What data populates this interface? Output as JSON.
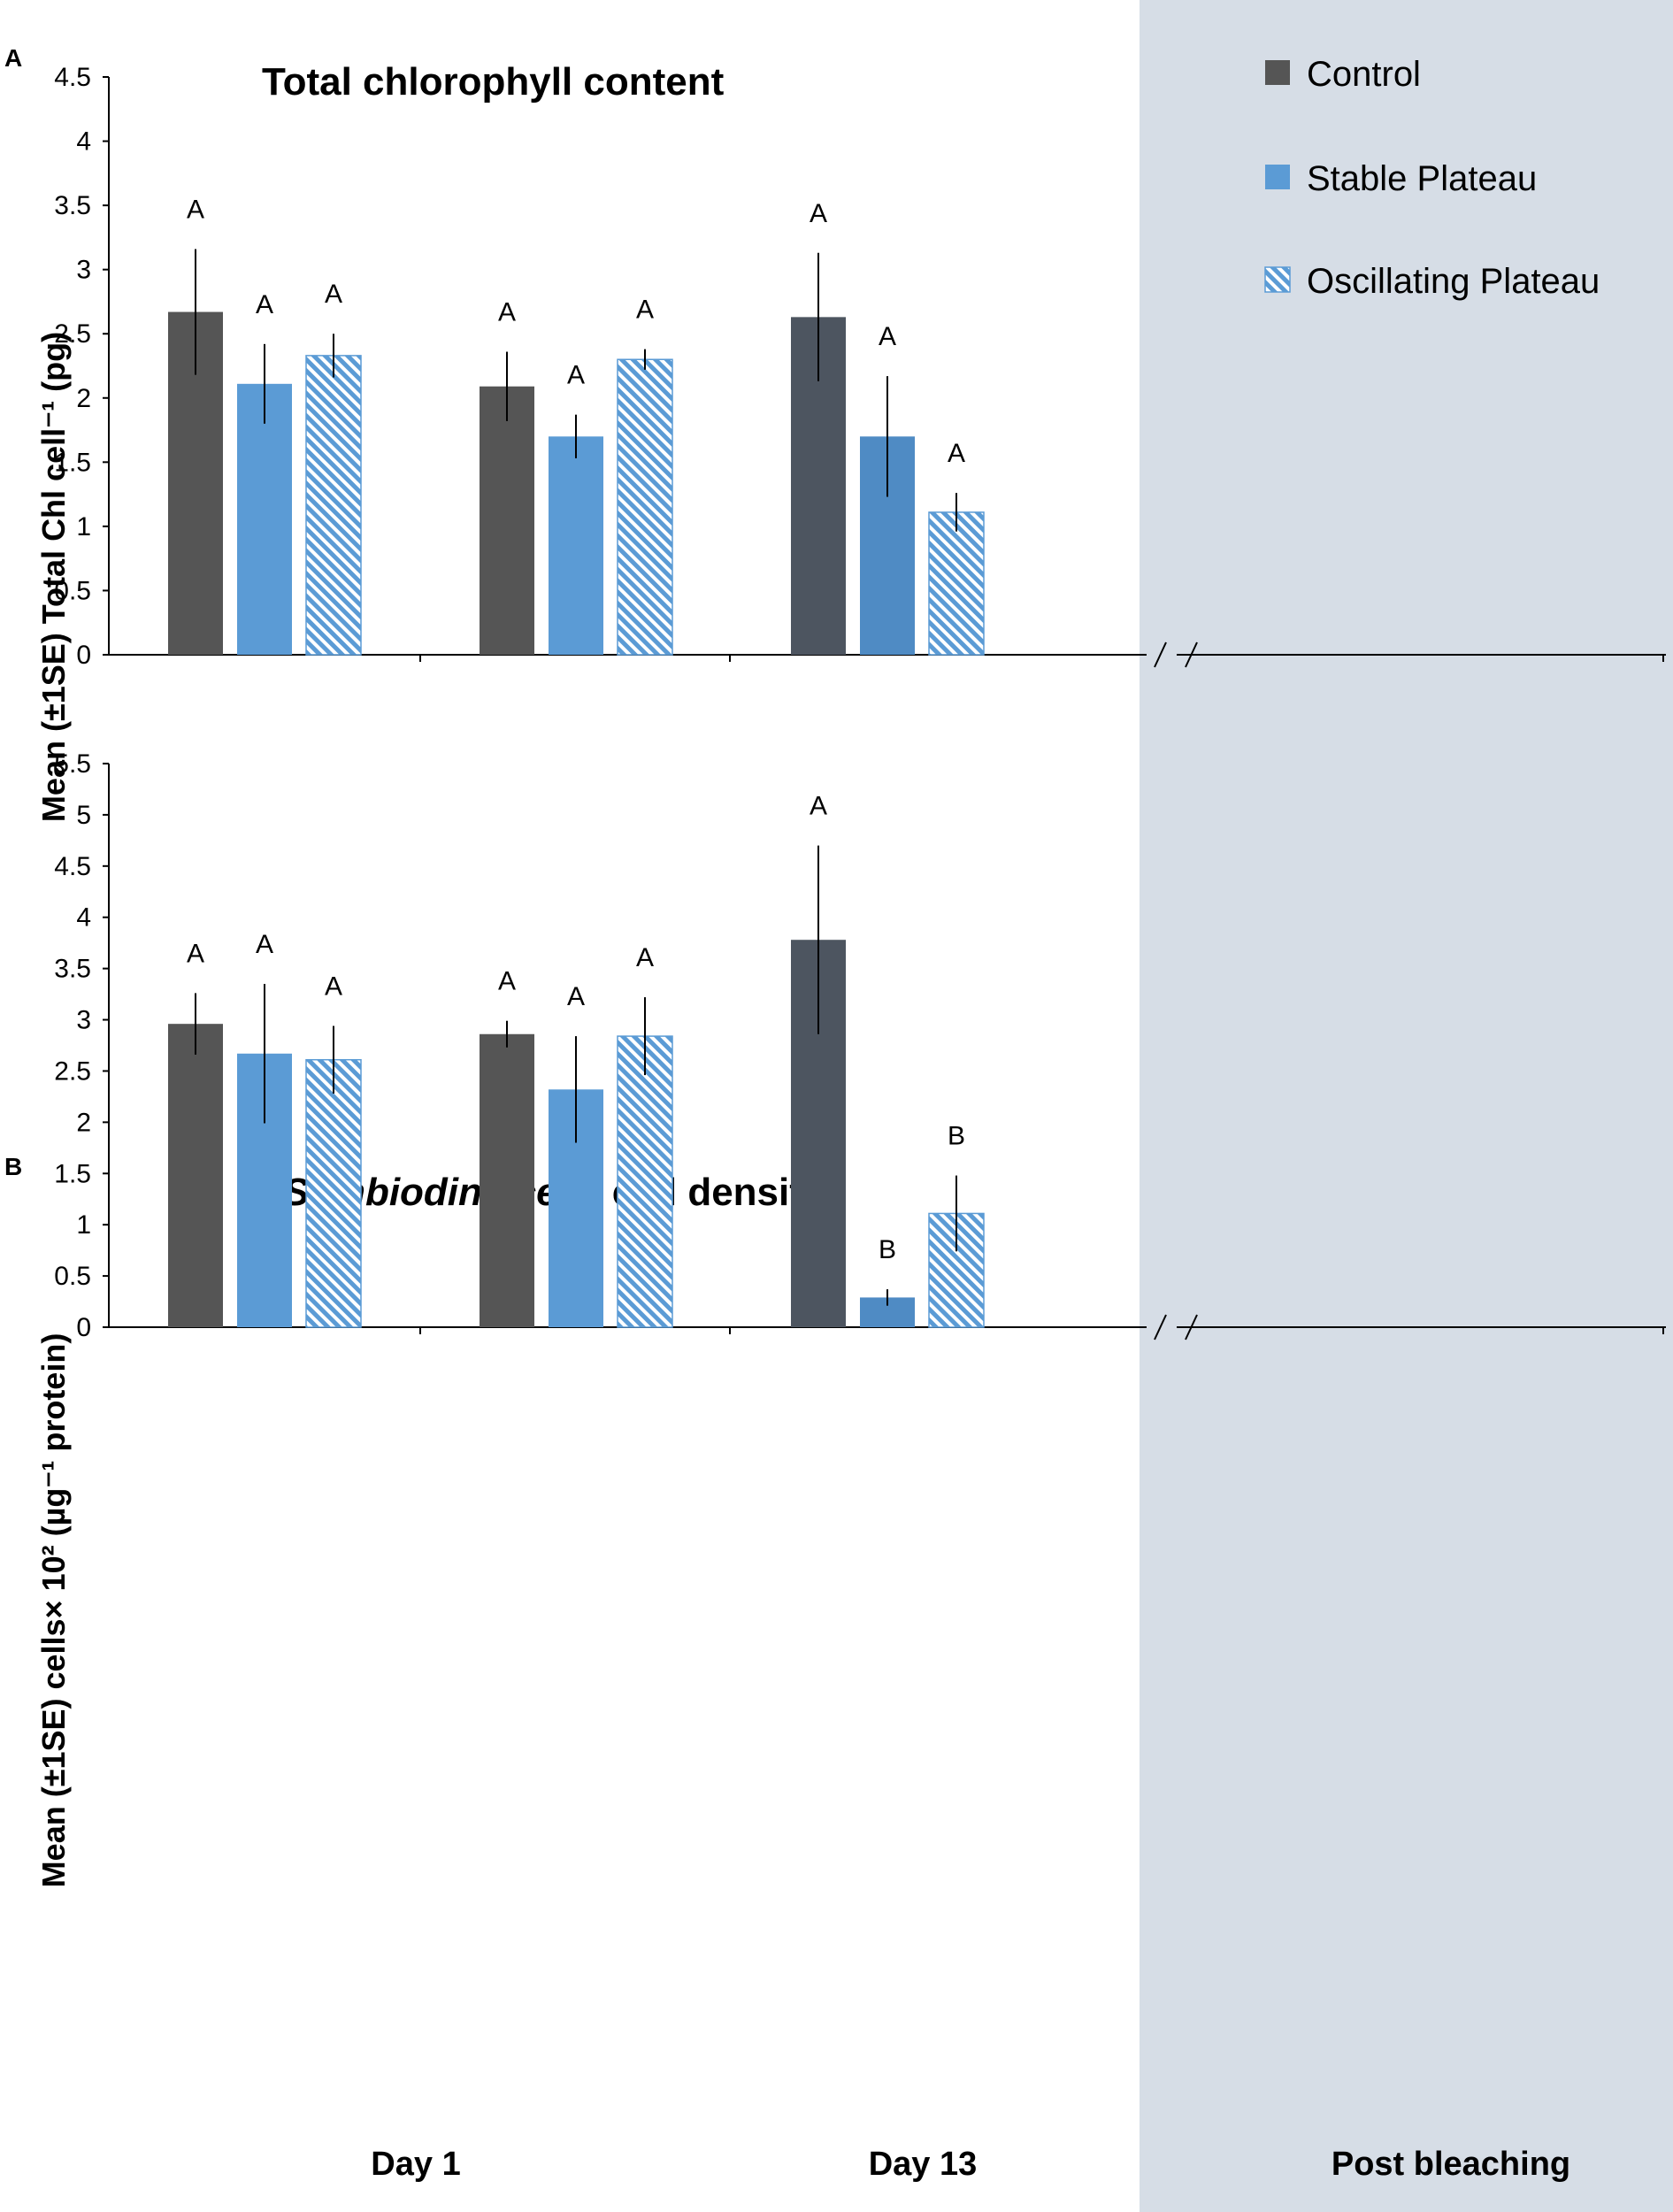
{
  "legend": [
    {
      "label": "Control",
      "color": "#555555",
      "pattern": "solid"
    },
    {
      "label": "Stable Plateau",
      "color": "#5B9BD5",
      "pattern": "solid"
    },
    {
      "label": "Oscillating Plateau",
      "color": "#5B9BD5",
      "pattern": "hatch"
    }
  ],
  "shaded_colors": {
    "control": "#4D5560",
    "stable": "#4F8BC4",
    "background": "#D6DDE6"
  },
  "x_categories": [
    "Day 1",
    "Day 13",
    "Post bleaching"
  ],
  "chart_data": [
    {
      "type": "bar",
      "panel_label": "A",
      "title": "Total chlorophyll content",
      "ylabel": "Mean (±1SE) Total Chl cell⁻¹ (pg)",
      "ylim": [
        0,
        4.5
      ],
      "yticks": [
        "0",
        "0.5",
        "1",
        "1.5",
        "2",
        "2.5",
        "3",
        "3.5",
        "4",
        "4.5"
      ],
      "categories": [
        "Day 1",
        "Day 13",
        "Post bleaching"
      ],
      "series": [
        {
          "name": "Control",
          "values": [
            2.67,
            2.09,
            2.63
          ],
          "errors": [
            0.49,
            0.27,
            0.5
          ],
          "letters": [
            "A",
            "A",
            "A"
          ]
        },
        {
          "name": "Stable Plateau",
          "values": [
            2.11,
            1.7,
            1.7
          ],
          "errors": [
            0.31,
            0.17,
            0.47
          ],
          "letters": [
            "A",
            "A",
            "A"
          ]
        },
        {
          "name": "Oscillating Plateau",
          "values": [
            2.33,
            2.3,
            1.11
          ],
          "errors": [
            0.17,
            0.08,
            0.15
          ],
          "letters": [
            "A",
            "A",
            "A"
          ]
        }
      ]
    },
    {
      "type": "bar",
      "panel_label": "B",
      "title_italic": "Symbiodiniaceae",
      "title_rest": " cell density",
      "ylabel": "Mean (±1SE) cells× 10² (µg⁻¹ protein)",
      "ylim": [
        0,
        5.5
      ],
      "yticks": [
        "0",
        "0.5",
        "1",
        "1.5",
        "2",
        "2.5",
        "3",
        "3.5",
        "4",
        "4.5",
        "5",
        "5.5"
      ],
      "categories": [
        "Day 1",
        "Day 13",
        "Post bleaching"
      ],
      "series": [
        {
          "name": "Control",
          "values": [
            2.96,
            2.86,
            3.78
          ],
          "errors": [
            0.3,
            0.13,
            0.92
          ],
          "letters": [
            "A",
            "A",
            "A"
          ]
        },
        {
          "name": "Stable Plateau",
          "values": [
            2.67,
            2.32,
            0.29
          ],
          "errors": [
            0.68,
            0.52,
            0.08
          ],
          "letters": [
            "A",
            "A",
            "B"
          ]
        },
        {
          "name": "Oscillating Plateau",
          "values": [
            2.61,
            2.84,
            1.11
          ],
          "errors": [
            0.33,
            0.38,
            0.37
          ],
          "letters": [
            "A",
            "A",
            "B"
          ]
        }
      ]
    }
  ]
}
